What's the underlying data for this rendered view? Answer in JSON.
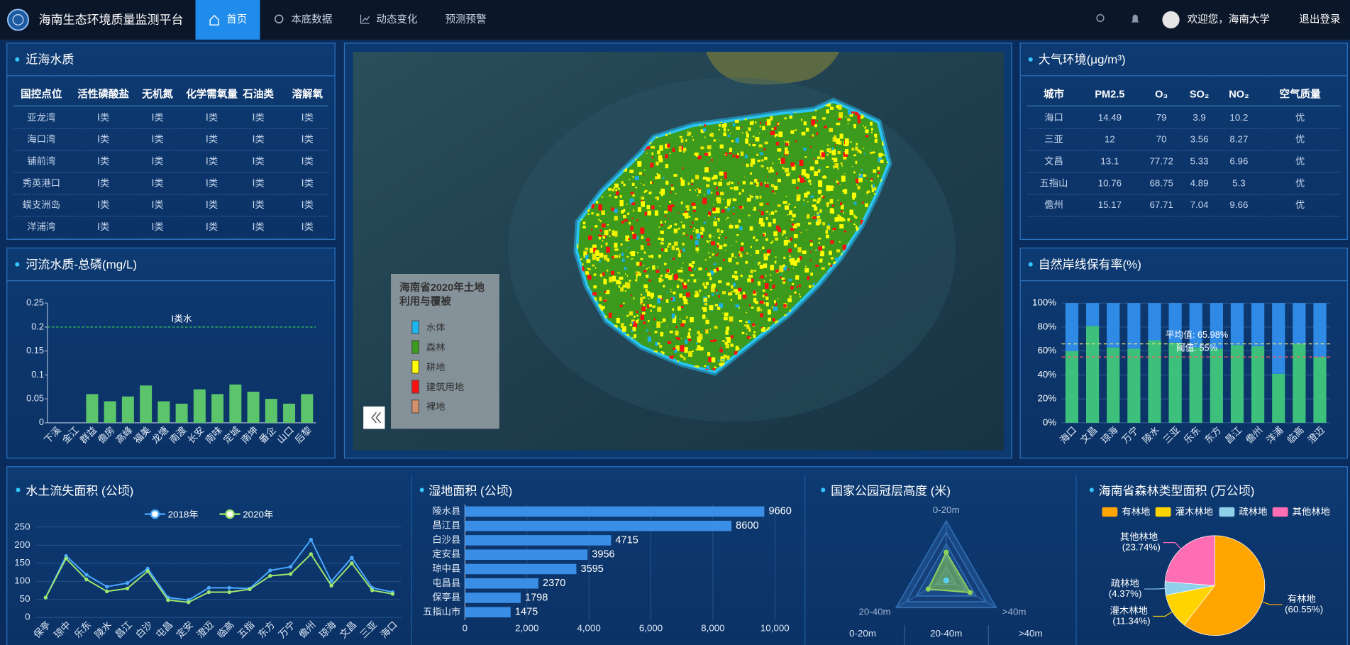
{
  "header": {
    "title": "海南生态环境质量监测平台",
    "nav": [
      "首页",
      "本底数据",
      "动态变化",
      "预测预警"
    ],
    "welcome": "欢迎您，海南大学",
    "logout": "退出登录"
  },
  "coastal_water": {
    "title": "近海水质",
    "columns": [
      "国控点位",
      "活性磷酸盐",
      "无机氮",
      "化学需氧量",
      "石油类",
      "溶解氧"
    ],
    "rows": [
      [
        "亚龙湾",
        "Ⅰ类",
        "Ⅰ类",
        "Ⅰ类",
        "Ⅰ类",
        "Ⅰ类"
      ],
      [
        "海口湾",
        "Ⅰ类",
        "Ⅰ类",
        "Ⅰ类",
        "Ⅰ类",
        "Ⅰ类"
      ],
      [
        "铺前湾",
        "Ⅰ类",
        "Ⅰ类",
        "Ⅰ类",
        "Ⅰ类",
        "Ⅰ类"
      ],
      [
        "秀英港口",
        "Ⅰ类",
        "Ⅰ类",
        "Ⅰ类",
        "Ⅰ类",
        "Ⅰ类"
      ],
      [
        "蜈支洲岛",
        "Ⅰ类",
        "Ⅰ类",
        "Ⅰ类",
        "Ⅰ类",
        "Ⅰ类"
      ],
      [
        "洋浦湾",
        "Ⅰ类",
        "Ⅰ类",
        "Ⅰ类",
        "Ⅰ类",
        "Ⅰ类"
      ]
    ]
  },
  "air": {
    "title": "大气环境(μg/m³)",
    "columns": [
      "城市",
      "PM2.5",
      "O₃",
      "SO₂",
      "NO₂",
      "空气质量"
    ],
    "rows": [
      [
        "海口",
        "14.49",
        "79",
        "3.9",
        "10.2",
        "优"
      ],
      [
        "三亚",
        "12",
        "70",
        "3.56",
        "8.27",
        "优"
      ],
      [
        "文昌",
        "13.1",
        "77.72",
        "5.33",
        "6.96",
        "优"
      ],
      [
        "五指山",
        "10.76",
        "68.75",
        "4.89",
        "5.3",
        "优"
      ],
      [
        "儋州",
        "15.17",
        "67.71",
        "7.04",
        "9.66",
        "优"
      ]
    ]
  },
  "map": {
    "legend_title": "海南省2020年土地利用与覆被",
    "legend": [
      {
        "label": "水体",
        "color": "#19b6f0"
      },
      {
        "label": "森林",
        "color": "#3c9a1c"
      },
      {
        "label": "耕地",
        "color": "#ffff00"
      },
      {
        "label": "建筑用地",
        "color": "#ff1010"
      },
      {
        "label": "裸地",
        "color": "#d4906a"
      }
    ]
  },
  "chart_data": [
    {
      "type": "bar",
      "title": "河流水质-总磷(mg/L)",
      "categories": [
        "下溪",
        "金江",
        "群益",
        "儋房",
        "高峰",
        "福美",
        "龙塘",
        "南渡",
        "长安",
        "南味",
        "定城",
        "南坤",
        "番企",
        "山口",
        "后黎"
      ],
      "values": [
        0,
        0,
        0.06,
        0.045,
        0.055,
        0.078,
        0.045,
        0.04,
        0.07,
        0.06,
        0.08,
        0.065,
        0.05,
        0.04,
        0.06
      ],
      "color": "#5cc46a",
      "ylim": [
        0,
        0.25
      ],
      "yticks": [
        0,
        0.05,
        0.1,
        0.15,
        0.2,
        0.25
      ],
      "threshold": {
        "value": 0.2,
        "label": "Ⅰ类水"
      }
    },
    {
      "type": "stacked_bar",
      "title": "自然岸线保有率(%)",
      "categories": [
        "海口",
        "文昌",
        "琼海",
        "万宁",
        "陵水",
        "三亚",
        "乐东",
        "东方",
        "昌江",
        "儋州",
        "洋浦",
        "临高",
        "澄迈"
      ],
      "series": [
        {
          "color": "#3cc07c",
          "values": [
            60,
            81,
            63,
            62,
            69,
            67,
            63,
            62,
            65,
            64,
            41,
            66,
            55
          ]
        },
        {
          "color": "#2f8ae6",
          "values": [
            40,
            19,
            37,
            38,
            31,
            33,
            37,
            38,
            35,
            36,
            59,
            34,
            45
          ]
        }
      ],
      "ylim": [
        0,
        100
      ],
      "yticks": [
        {
          "value": 0,
          "label": "0%"
        },
        {
          "value": 20,
          "label": "20%"
        },
        {
          "value": 40,
          "label": "40%"
        },
        {
          "value": 60,
          "label": "60%"
        },
        {
          "value": 80,
          "label": "80%"
        },
        {
          "value": 100,
          "label": "100%"
        }
      ],
      "reference_lines": [
        {
          "value": 65.98,
          "label": "平均值: 65.98%",
          "color": "#e6e07a"
        },
        {
          "value": 55,
          "label": "阈值: 55%",
          "color": "#ff5a5a"
        }
      ]
    },
    {
      "type": "line",
      "title": "水土流失面积 (公顷)",
      "categories": [
        "保亭",
        "琼中",
        "乐东",
        "陵水",
        "昌江",
        "白沙",
        "屯昌",
        "定安",
        "澄迈",
        "临高",
        "五指",
        "东方",
        "万宁",
        "儋州",
        "琼海",
        "文昌",
        "三亚",
        "海口"
      ],
      "series": [
        {
          "name": "2018年",
          "color": "#4aa8ff",
          "values": [
            55,
            170,
            118,
            85,
            95,
            135,
            55,
            48,
            82,
            82,
            80,
            130,
            140,
            215,
            100,
            165,
            82,
            70
          ]
        },
        {
          "name": "2020年",
          "color": "#9ee86f",
          "values": [
            55,
            163,
            105,
            72,
            80,
            128,
            48,
            42,
            70,
            70,
            78,
            115,
            120,
            175,
            88,
            150,
            75,
            65
          ]
        }
      ],
      "ylim": [
        0,
        250
      ],
      "yticks": [
        0,
        50,
        100,
        150,
        200,
        250
      ],
      "grid": true
    },
    {
      "type": "hbar",
      "title": "湿地面积 (公顷)",
      "categories": [
        "陵水县",
        "昌江县",
        "白沙县",
        "定安县",
        "琼中县",
        "屯昌县",
        "保亭县",
        "五指山市"
      ],
      "values": [
        9660,
        8600,
        4715,
        3956,
        3595,
        2370,
        1798,
        1475
      ],
      "color": "#3a8ee6",
      "xlim": [
        0,
        10500
      ],
      "xticks": [
        0,
        {
          "value": 2000,
          "label": "2,000"
        },
        {
          "value": 4000,
          "label": "4,000"
        },
        {
          "value": 6000,
          "label": "6,000"
        },
        {
          "value": 8000,
          "label": "8,000"
        },
        {
          "value": 10000,
          "label": "10,000"
        }
      ],
      "grid": true
    },
    {
      "type": "radar",
      "title": "国家公园冠层高度 (米)",
      "indicators": [
        "0-20m",
        "20-40m",
        ">40m"
      ],
      "values": [
        46,
        48,
        36
      ],
      "rlim": [
        0,
        100
      ],
      "color": "#8fd35a",
      "tabs": [
        "0-20m",
        "20-40m",
        ">40m"
      ]
    },
    {
      "type": "pie",
      "title": "海南省森林类型面积 (万公顷)",
      "categories": [
        "有林地",
        "灌木林地",
        "疏林地",
        "其他林地"
      ],
      "values": [
        60.55,
        11.34,
        4.37,
        23.74
      ],
      "value_labels": [
        "(60.55%)",
        "(11.34%)",
        "(4.37%)",
        "(23.74%)"
      ],
      "colors": [
        "#ffa500",
        "#ffd400",
        "#8fd0ea",
        "#ff6eb4"
      ]
    }
  ]
}
